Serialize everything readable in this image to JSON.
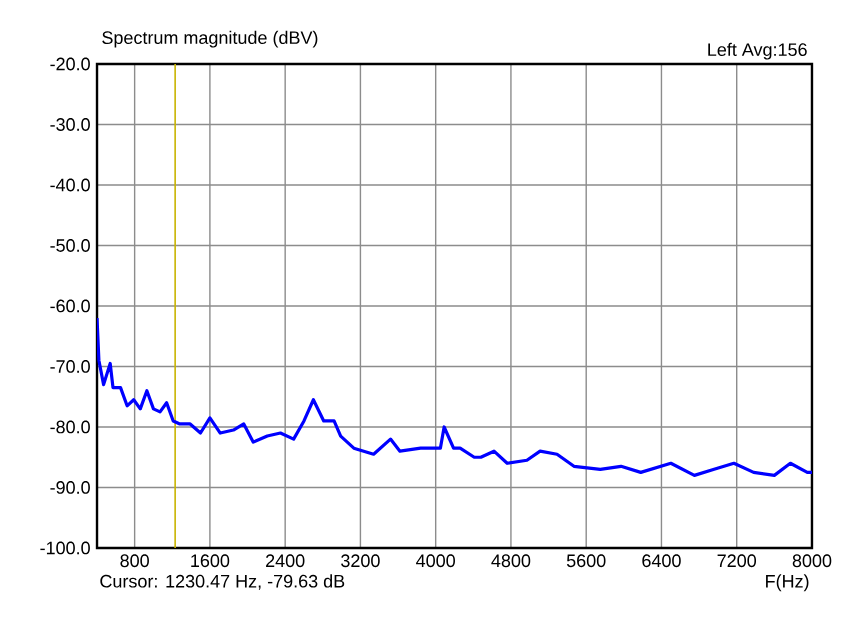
{
  "chart_data": {
    "type": "line",
    "title": "Spectrum magnitude (dBV)",
    "subtitle": "Left  Avg:156",
    "xlabel": "F(Hz)",
    "annotations": [
      "Cursor: 1230.47 Hz, -79.63 dB"
    ],
    "series": [
      {
        "color": "#0000ff",
        "x": [
          400,
          420,
          470,
          540,
          570,
          650,
          720,
          790,
          860,
          930,
          1000,
          1070,
          1140,
          1210,
          1280,
          1390,
          1500,
          1600,
          1710,
          1850,
          1960,
          2060,
          2210,
          2350,
          2490,
          2600,
          2700,
          2810,
          2920,
          2990,
          3130,
          3340,
          3520,
          3620,
          3840,
          4050,
          4090,
          4190,
          4260,
          4410,
          4480,
          4620,
          4760,
          4970,
          5110,
          5290,
          5470,
          5750,
          5970,
          6180,
          6500,
          6750,
          6960,
          7170,
          7380,
          7600,
          7770,
          7950,
          8000
        ],
        "values": [
          -62,
          -69,
          -73,
          -69.5,
          -73.5,
          -73.5,
          -76.5,
          -75.5,
          -77,
          -74,
          -77,
          -77.5,
          -76,
          -79,
          -79.5,
          -79.5,
          -81,
          -78.5,
          -81,
          -80.5,
          -79.5,
          -82.5,
          -81.5,
          -81,
          -82,
          -79,
          -75.5,
          -79,
          -79,
          -81.5,
          -83.5,
          -84.5,
          -82,
          -84,
          -83.5,
          -83.5,
          -80,
          -83.5,
          -83.5,
          -85,
          -85,
          -84,
          -86,
          -85.5,
          -84,
          -84.5,
          -86.5,
          -87,
          -86.5,
          -87.5,
          -86,
          -88,
          -87,
          -86,
          -87.5,
          -88,
          -86,
          -87.5,
          -87.5
        ]
      }
    ],
    "xlim": [
      400,
      8000
    ],
    "ylim": [
      -100,
      -20
    ],
    "xticks": [
      800,
      1600,
      2400,
      3200,
      4000,
      4800,
      5600,
      6400,
      7200,
      8000
    ],
    "yticks": [
      {
        "value": -100,
        "label": "-100.0"
      },
      {
        "value": -90,
        "label": "-90.0"
      },
      {
        "value": -80,
        "label": "-80.0"
      },
      {
        "value": -70,
        "label": "-70.0"
      },
      {
        "value": -60,
        "label": "-60.0"
      },
      {
        "value": -50,
        "label": "-50.0"
      },
      {
        "value": -40,
        "label": "-40.0"
      },
      {
        "value": -30,
        "label": "-30.0"
      },
      {
        "value": -20,
        "label": "-20.0"
      }
    ],
    "ref_lines": [
      {
        "axis": "x",
        "value": 1230.47,
        "color": "#c8b400"
      }
    ],
    "grid": true,
    "marker": "none",
    "line_style": "solid"
  }
}
